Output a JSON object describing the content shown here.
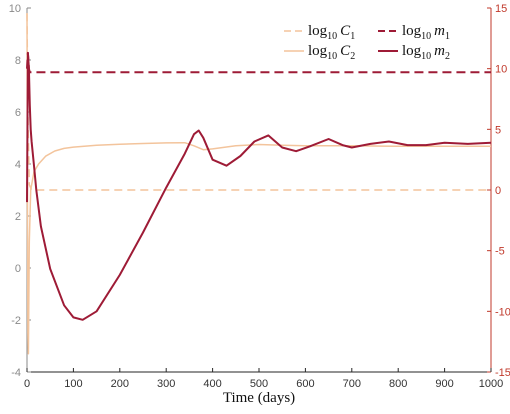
{
  "chart_data": {
    "type": "line",
    "title": "",
    "xlabel": "Time (days)",
    "xlim": [
      0,
      1000
    ],
    "x_ticks": [
      0,
      100,
      200,
      300,
      400,
      500,
      600,
      700,
      800,
      900,
      1000
    ],
    "ylim_left": [
      -4,
      10
    ],
    "y_ticks_left": [
      -4,
      -2,
      0,
      2,
      4,
      6,
      8,
      10
    ],
    "ylim_right": [
      -15,
      15
    ],
    "y_ticks_right": [
      -15,
      -10,
      -5,
      0,
      5,
      10,
      15
    ],
    "grid": false,
    "legend_position": "top-right",
    "colors": {
      "C": "#f3c49c",
      "m": "#9e1b36",
      "left_axis": "#8a8a8a",
      "right_axis": "#c0392b"
    },
    "series": [
      {
        "name": "log10 C1",
        "label_main": "log",
        "label_sub": "10",
        "label_var": "C",
        "label_var_sub": "1",
        "axis": "left",
        "style": "dashed",
        "color": "#f3c49c",
        "x": [
          0,
          2,
          5,
          10,
          20,
          50,
          100,
          200,
          400,
          600,
          800,
          1000
        ],
        "y": [
          9.8,
          6.0,
          3.2,
          3.0,
          3.0,
          3.0,
          3.0,
          3.0,
          3.0,
          3.0,
          3.0,
          3.0
        ]
      },
      {
        "name": "log10 C2",
        "label_main": "log",
        "label_sub": "10",
        "label_var": "C",
        "label_var_sub": "2",
        "axis": "left",
        "style": "solid",
        "color": "#f3c49c",
        "x": [
          0,
          1,
          2,
          3,
          5,
          8,
          15,
          25,
          40,
          60,
          80,
          100,
          150,
          200,
          250,
          300,
          340,
          360,
          380,
          400,
          450,
          500,
          550,
          600,
          700,
          800,
          900,
          1000
        ],
        "y": [
          9.8,
          2.0,
          -2.5,
          -3.3,
          1.0,
          3.0,
          3.7,
          4.0,
          4.3,
          4.5,
          4.6,
          4.65,
          4.72,
          4.76,
          4.79,
          4.81,
          4.82,
          4.7,
          4.55,
          4.58,
          4.7,
          4.75,
          4.72,
          4.7,
          4.7,
          4.68,
          4.68,
          4.68
        ]
      },
      {
        "name": "log10 m1",
        "label_main": "log",
        "label_sub": "10",
        "label_var": "m",
        "label_var_sub": "1",
        "axis": "right",
        "style": "dashed",
        "color": "#9e1b36",
        "x": [
          0,
          2,
          4,
          6,
          10,
          50,
          200,
          400,
          600,
          800,
          1000
        ],
        "y": [
          10.0,
          11.3,
          10.0,
          9.7,
          9.7,
          9.7,
          9.7,
          9.7,
          9.7,
          9.7,
          9.7
        ]
      },
      {
        "name": "log10 m2",
        "label_main": "log",
        "label_sub": "10",
        "label_var": "m",
        "label_var_sub": "2",
        "axis": "right",
        "style": "solid",
        "color": "#9e1b36",
        "x": [
          0,
          2,
          4,
          6,
          8,
          10,
          15,
          20,
          30,
          50,
          80,
          100,
          120,
          150,
          200,
          250,
          300,
          340,
          360,
          370,
          380,
          400,
          430,
          460,
          490,
          520,
          550,
          580,
          610,
          650,
          680,
          700,
          740,
          780,
          820,
          860,
          900,
          950,
          1000
        ],
        "y": [
          -1.0,
          11.3,
          10.0,
          7.0,
          5.0,
          4.0,
          2.0,
          0.0,
          -3.0,
          -6.5,
          -9.5,
          -10.5,
          -10.7,
          -10.0,
          -7.0,
          -3.5,
          0.2,
          3.0,
          4.6,
          4.9,
          4.3,
          2.5,
          2.0,
          2.8,
          4.0,
          4.5,
          3.5,
          3.2,
          3.6,
          4.2,
          3.7,
          3.5,
          3.8,
          4.0,
          3.7,
          3.7,
          3.9,
          3.8,
          3.9
        ]
      }
    ]
  }
}
